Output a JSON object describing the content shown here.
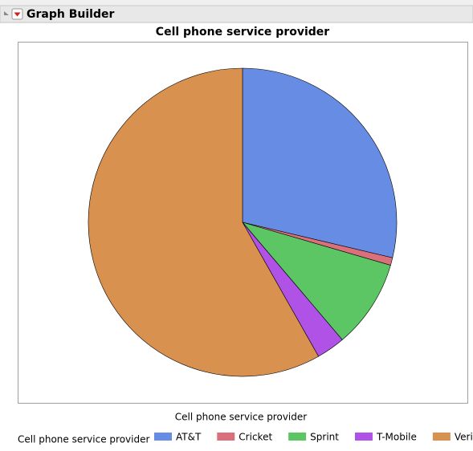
{
  "header": {
    "title": "Graph Builder"
  },
  "chart_data": {
    "type": "pie",
    "title": "Cell phone service provider",
    "x_label": "Cell phone service provider",
    "legend_title": "Cell phone service provider",
    "categories": [
      "AT&T",
      "Cricket",
      "Sprint",
      "T-Mobile",
      "Verizon"
    ],
    "values": [
      28.7,
      0.8,
      9.3,
      3.0,
      58.2
    ],
    "colors": [
      "#678ce3",
      "#d9707b",
      "#5cc665",
      "#b152e7",
      "#d9914f"
    ]
  }
}
